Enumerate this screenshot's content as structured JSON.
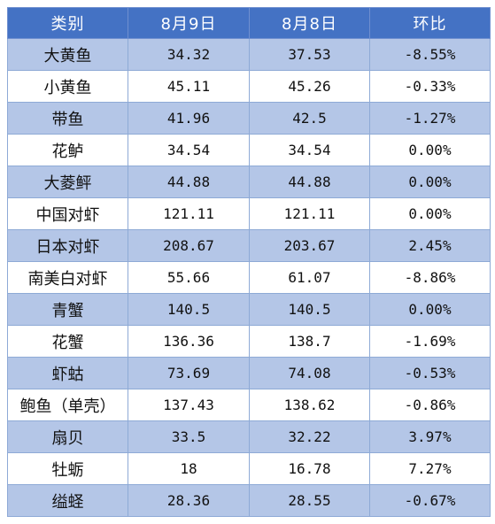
{
  "table": {
    "headers": [
      "类别",
      "8月9日",
      "8月8日",
      "环比"
    ],
    "rows": [
      [
        "大黄鱼",
        "34.32",
        "37.53",
        "-8.55%"
      ],
      [
        "小黄鱼",
        "45.11",
        "45.26",
        "-0.33%"
      ],
      [
        "带鱼",
        "41.96",
        "42.5",
        "-1.27%"
      ],
      [
        "花鲈",
        "34.54",
        "34.54",
        "0.00%"
      ],
      [
        "大菱鲆",
        "44.88",
        "44.88",
        "0.00%"
      ],
      [
        "中国对虾",
        "121.11",
        "121.11",
        "0.00%"
      ],
      [
        "日本对虾",
        "208.67",
        "203.67",
        "2.45%"
      ],
      [
        "南美白对虾",
        "55.66",
        "61.07",
        "-8.86%"
      ],
      [
        "青蟹",
        "140.5",
        "140.5",
        "0.00%"
      ],
      [
        "花蟹",
        "136.36",
        "138.7",
        "-1.69%"
      ],
      [
        "虾蛄",
        "73.69",
        "74.08",
        "-0.53%"
      ],
      [
        "鲍鱼（单壳）",
        "137.43",
        "138.62",
        "-0.86%"
      ],
      [
        "扇贝",
        "33.5",
        "32.22",
        "3.97%"
      ],
      [
        "牡蛎",
        "18",
        "16.78",
        "7.27%"
      ],
      [
        "缢蛏",
        "28.36",
        "28.55",
        "-0.67%"
      ]
    ]
  },
  "colors": {
    "header_bg": "#4472c4",
    "band_bg": "#b4c6e7",
    "plain_bg": "#ffffff",
    "border": "#8eaad6"
  }
}
